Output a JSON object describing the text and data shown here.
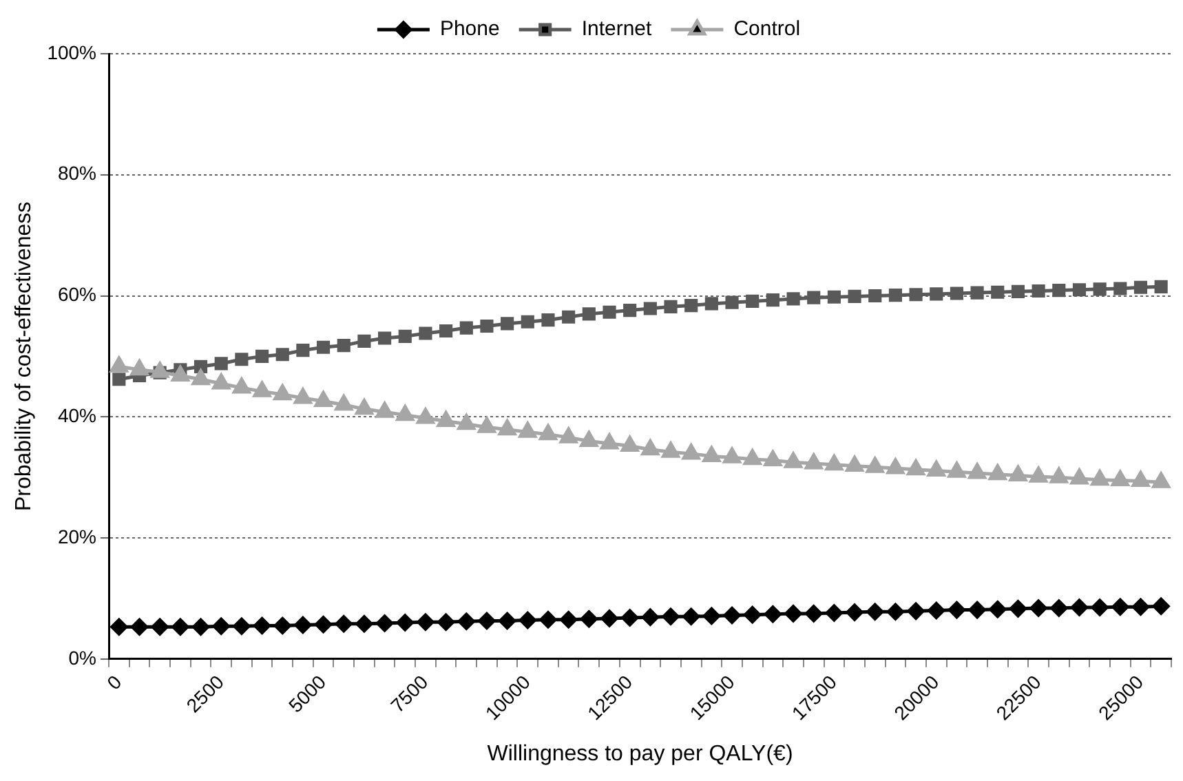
{
  "chart_data": {
    "type": "line",
    "xlabel": "Willingness to pay per QALY(€)",
    "ylabel": "Probability of cost-effectiveness",
    "categories": [
      "0",
      null,
      null,
      null,
      null,
      "2500",
      null,
      null,
      null,
      null,
      "5000",
      null,
      null,
      null,
      null,
      "7500",
      null,
      null,
      null,
      null,
      "10000",
      null,
      null,
      null,
      null,
      "12500",
      null,
      null,
      null,
      null,
      "15000",
      null,
      null,
      null,
      null,
      "17500",
      null,
      null,
      null,
      null,
      "20000",
      null,
      null,
      null,
      null,
      "22500",
      null,
      null,
      null,
      null,
      "25000",
      null
    ],
    "series": [
      {
        "name": "Phone",
        "color": "#000000",
        "marker": "diamond",
        "values": [
          5.3,
          5.3,
          5.3,
          5.3,
          5.3,
          5.4,
          5.4,
          5.5,
          5.5,
          5.6,
          5.7,
          5.8,
          5.8,
          5.9,
          6.0,
          6.1,
          6.1,
          6.2,
          6.3,
          6.3,
          6.4,
          6.5,
          6.5,
          6.6,
          6.7,
          6.8,
          6.9,
          7.0,
          7.0,
          7.1,
          7.2,
          7.3,
          7.4,
          7.5,
          7.5,
          7.6,
          7.7,
          7.8,
          7.8,
          7.9,
          8.0,
          8.1,
          8.1,
          8.2,
          8.3,
          8.4,
          8.4,
          8.5,
          8.5,
          8.6,
          8.6,
          8.7
        ]
      },
      {
        "name": "Internet",
        "color": "#595959",
        "marker": "square",
        "values": [
          46.2,
          46.8,
          47.3,
          47.8,
          48.3,
          48.8,
          49.5,
          50.0,
          50.3,
          51.0,
          51.5,
          51.8,
          52.5,
          53.0,
          53.3,
          53.8,
          54.2,
          54.7,
          55.0,
          55.4,
          55.7,
          56.0,
          56.5,
          57.0,
          57.3,
          57.6,
          57.9,
          58.2,
          58.4,
          58.7,
          58.9,
          59.1,
          59.3,
          59.5,
          59.7,
          59.8,
          59.9,
          60.0,
          60.1,
          60.2,
          60.3,
          60.4,
          60.5,
          60.6,
          60.7,
          60.8,
          60.9,
          61.0,
          61.1,
          61.2,
          61.4,
          61.5
        ]
      },
      {
        "name": "Control",
        "color": "#a6a6a6",
        "marker": "triangle",
        "values": [
          48.3,
          47.8,
          47.4,
          46.8,
          46.2,
          45.5,
          44.8,
          44.2,
          43.7,
          43.1,
          42.6,
          42.0,
          41.3,
          40.8,
          40.3,
          39.8,
          39.3,
          38.8,
          38.3,
          37.9,
          37.5,
          37.1,
          36.6,
          36.0,
          35.6,
          35.2,
          34.6,
          34.2,
          33.9,
          33.5,
          33.3,
          33.0,
          32.8,
          32.5,
          32.3,
          32.1,
          31.9,
          31.7,
          31.5,
          31.3,
          31.1,
          30.9,
          30.7,
          30.5,
          30.3,
          30.1,
          30.0,
          29.8,
          29.6,
          29.5,
          29.4,
          29.2
        ]
      }
    ],
    "ylim": [
      0,
      100
    ],
    "yticks": [
      {
        "value": 0,
        "label": "0%"
      },
      {
        "value": 20,
        "label": "20%"
      },
      {
        "value": 40,
        "label": "40%"
      },
      {
        "value": 60,
        "label": "60%"
      },
      {
        "value": 80,
        "label": "80%"
      },
      {
        "value": 100,
        "label": "100%"
      }
    ],
    "grid": "y",
    "legend": "top",
    "line_style": "solid"
  }
}
